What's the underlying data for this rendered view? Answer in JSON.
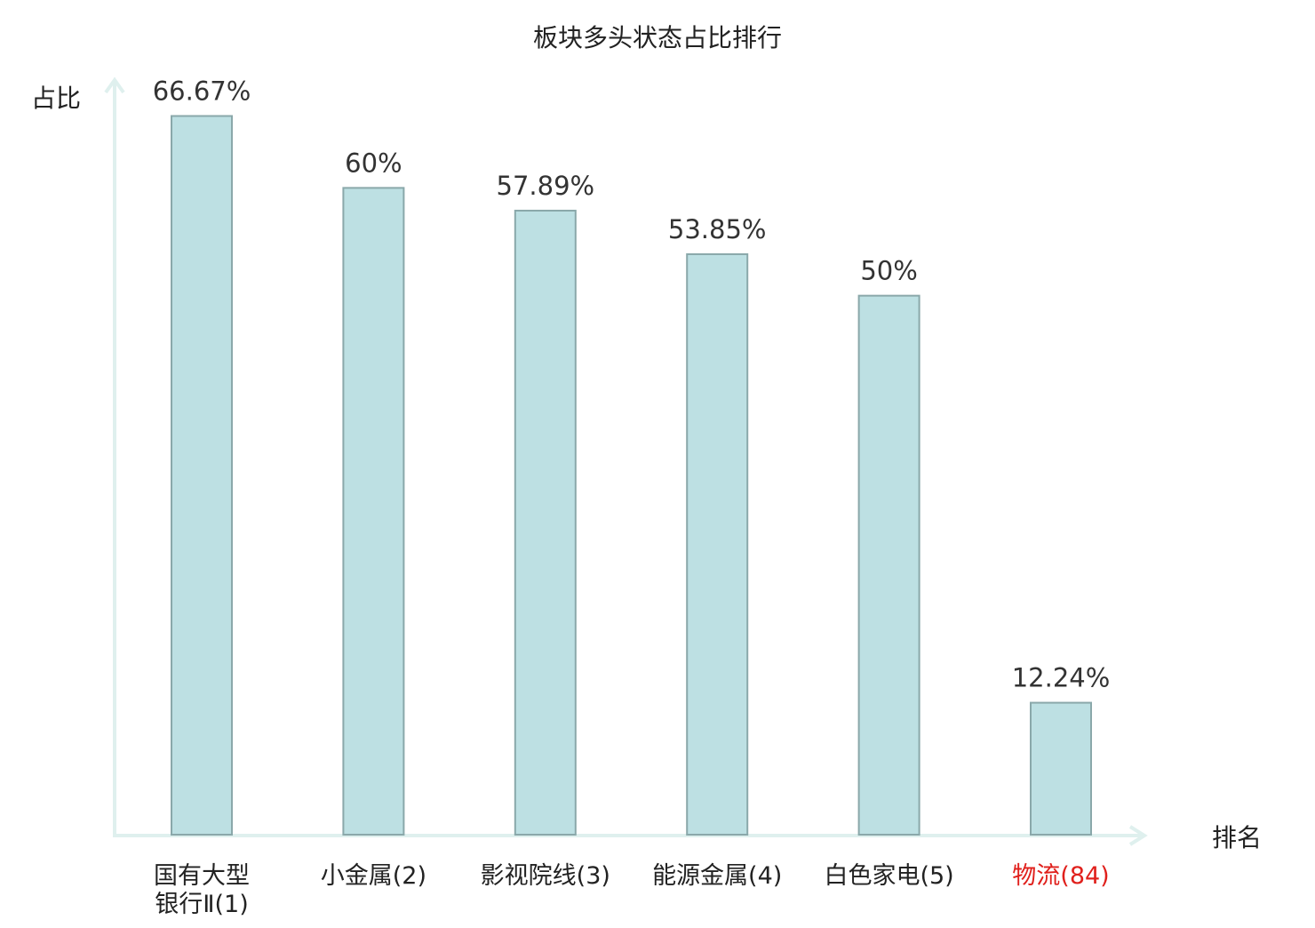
{
  "chart_data": {
    "type": "bar",
    "title": "板块多头状态占比排行",
    "xlabel": "排名",
    "ylabel": "占比",
    "categories": [
      [
        "国有大型",
        "银行Ⅱ(1)"
      ],
      [
        "小金属(2)"
      ],
      [
        "影视院线(3)"
      ],
      [
        "能源金属(4)"
      ],
      [
        "白色家电(5)"
      ],
      [
        "物流(84)"
      ]
    ],
    "values": [
      66.67,
      60,
      57.89,
      53.85,
      50,
      12.24
    ],
    "value_labels": [
      "66.67%",
      "60%",
      "57.89%",
      "53.85%",
      "50%",
      "12.24%"
    ],
    "highlight_index": 5,
    "ylim": [
      0,
      70
    ],
    "grid": false,
    "colors": {
      "bar_fill": "#bde0e3",
      "bar_stroke": "#8aa8aa",
      "axis": "#dff0ee",
      "text": "#333333",
      "highlight_text": "#e0201c"
    }
  }
}
